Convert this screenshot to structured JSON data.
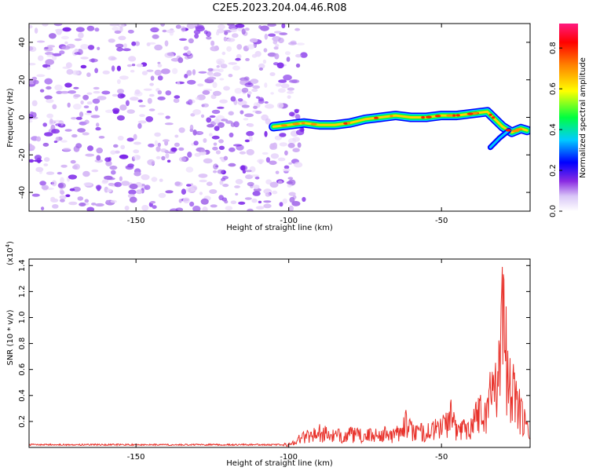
{
  "title": "C2E5.2023.204.04.46.R08",
  "colors": {
    "snr_line": "#e8312a",
    "noise_purple": "#7a22e8",
    "axis": "#000000"
  },
  "chart_data": [
    {
      "type": "heatmap",
      "xlabel": "Height of straight line (km)",
      "ylabel": "Frequency (Hz)",
      "xlim": [
        -185,
        -21
      ],
      "ylim": [
        -50,
        50
      ],
      "xticks": [
        -150,
        -100,
        -50
      ],
      "yticks": [
        -40,
        -20,
        0,
        20,
        40
      ],
      "xtick_labels": [
        "-150",
        "-100",
        "-50"
      ],
      "ytick_labels": [
        "-40",
        "-20",
        "0",
        "20",
        "40"
      ],
      "colorbar": {
        "label": "Normalized spectral amplitude",
        "range": [
          0,
          0.92
        ],
        "ticks": [
          0,
          0.2,
          0.4,
          0.6,
          0.8
        ],
        "tick_labels": [
          "0.0",
          "0.2",
          "0.4",
          "0.6",
          "0.8"
        ]
      },
      "noise_region": {
        "x_from": -185,
        "x_to": -95,
        "typical_amplitude": 0.1
      },
      "signal_track": {
        "x": [
          -105,
          -100,
          -95,
          -90,
          -85,
          -80,
          -75,
          -70,
          -65,
          -60,
          -55,
          -50,
          -45,
          -40,
          -35,
          -30,
          -27,
          -24,
          -22
        ],
        "y": [
          -5,
          -4,
          -3,
          -4,
          -4,
          -3,
          -1,
          0,
          1,
          0,
          0,
          1,
          1,
          2,
          3,
          -5,
          -8,
          -6,
          -7
        ],
        "peak_amplitude": 0.9
      },
      "secondary_track": {
        "x": [
          -34,
          -31,
          -28
        ],
        "y": [
          -16,
          -11,
          -7
        ]
      }
    },
    {
      "type": "line",
      "xlabel": "Height of straight line (km)",
      "ylabel": "SNR (10 * v/v)",
      "y_exponent_label": "(x10",
      "y_exponent_power": "4",
      "y_exponent_close": ")",
      "xlim": [
        -185,
        -21
      ],
      "ylim": [
        0,
        1.45
      ],
      "xticks": [
        -150,
        -100,
        -50
      ],
      "yticks": [
        0.2,
        0.4,
        0.6,
        0.8,
        1.0,
        1.2,
        1.4
      ],
      "xtick_labels": [
        "-150",
        "-100",
        "-50"
      ],
      "ytick_labels": [
        "0.2",
        "0.4",
        "0.6",
        "0.8",
        "1.0",
        "1.2",
        "1.4"
      ],
      "series": [
        {
          "x": [
            -185,
            -150,
            -110,
            -100,
            -95,
            -90,
            -85,
            -80,
            -75,
            -70,
            -65,
            -62,
            -60,
            -55,
            -50,
            -47,
            -45,
            -40,
            -38,
            -36,
            -34,
            -33,
            -32,
            -31,
            -30,
            -29,
            -28,
            -27,
            -25,
            -23,
            -21
          ],
          "y": [
            0.02,
            0.02,
            0.02,
            0.03,
            0.12,
            0.16,
            0.12,
            0.14,
            0.12,
            0.15,
            0.13,
            0.28,
            0.18,
            0.16,
            0.22,
            0.33,
            0.18,
            0.25,
            0.42,
            0.35,
            0.55,
            0.7,
            0.85,
            1.1,
            1.45,
            1.05,
            0.8,
            0.6,
            0.45,
            0.28,
            0.12
          ]
        }
      ]
    }
  ]
}
